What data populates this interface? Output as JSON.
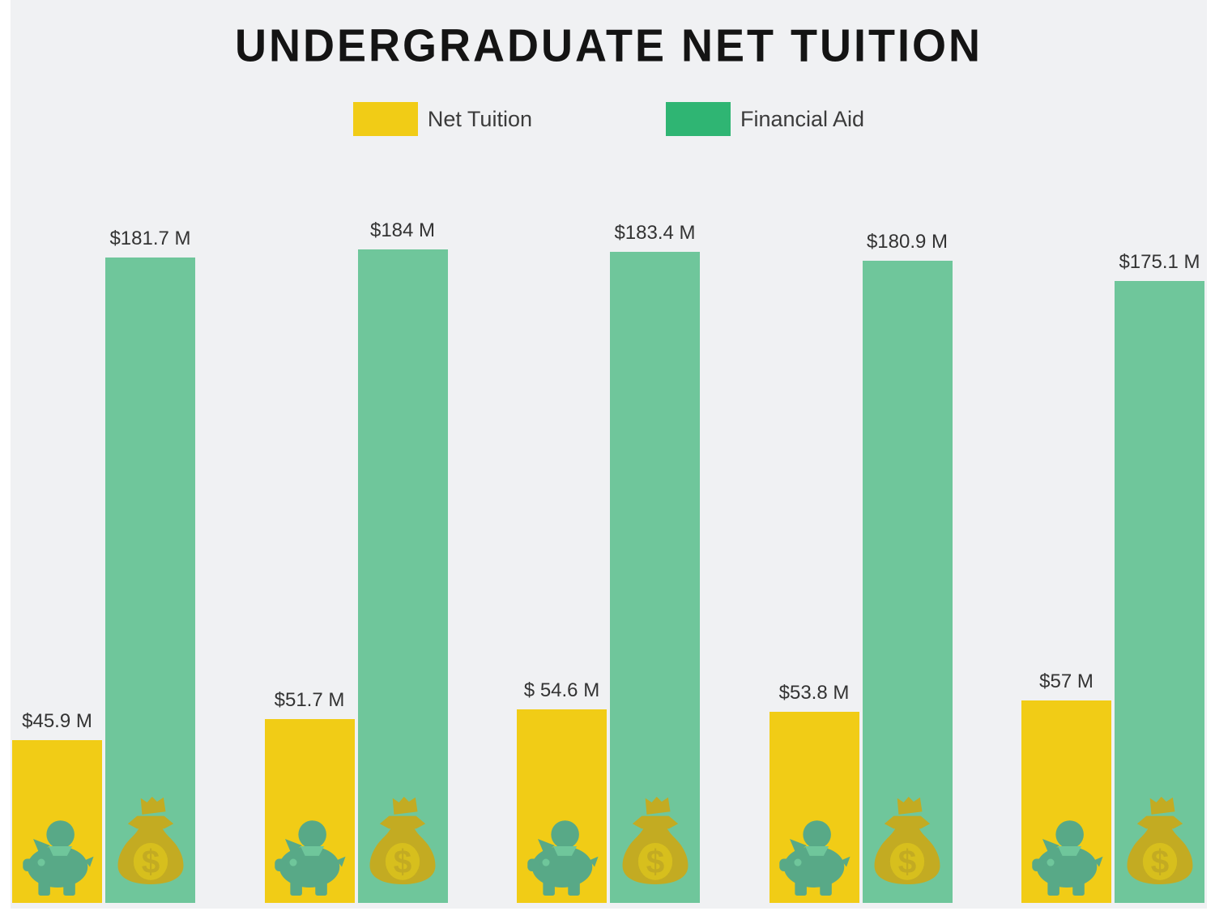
{
  "title": "UNDERGRADUATE NET TUITION",
  "colors": {
    "canvas_background": "#f0f1f3",
    "page_background": "#ffffff",
    "net_tuition_bar": "#f1cc16",
    "financial_aid_bar": "#6fc69b",
    "legend_financial_aid_swatch": "#2fb573",
    "piggy_icon_dark": "#58a987",
    "money_bag_dark": "#c3ab22",
    "money_bag_badge": "#d7bf1d",
    "title_text": "#141414",
    "label_text": "#333333"
  },
  "legend": [
    {
      "label": "Net Tuition",
      "color": "#f1cc16"
    },
    {
      "label": "Financial Aid",
      "color": "#2fb573"
    }
  ],
  "chart_data": {
    "type": "bar",
    "title": "UNDERGRADUATE NET TUITION",
    "grid": false,
    "axes_visible": false,
    "legend_position": "top",
    "series": [
      {
        "name": "Financial Aid",
        "color": "#6fc69b",
        "values": [
          45.9,
          51.7,
          54.6,
          53.8,
          57
        ]
      },
      {
        "name": "Net Tuition",
        "color": "#f1cc16",
        "values": [
          181.7,
          184,
          183.4,
          180.9,
          175.1
        ]
      }
    ],
    "groups": [
      {
        "financial_aid": {
          "value": 45.9,
          "label": "$45.9 M"
        },
        "net_tuition": {
          "value": 181.7,
          "label": "$181.7 M"
        }
      },
      {
        "financial_aid": {
          "value": 51.7,
          "label": "$51.7 M"
        },
        "net_tuition": {
          "value": 184,
          "label": "$184 M"
        }
      },
      {
        "financial_aid": {
          "value": 54.6,
          "label": "$ 54.6 M"
        },
        "net_tuition": {
          "value": 183.4,
          "label": "$183.4 M"
        }
      },
      {
        "financial_aid": {
          "value": 53.8,
          "label": "$53.8 M"
        },
        "net_tuition": {
          "value": 180.9,
          "label": "$180.9 M"
        }
      },
      {
        "financial_aid": {
          "value": 57,
          "label": "$57 M"
        },
        "net_tuition": {
          "value": 175.1,
          "label": "$175.1 M"
        }
      }
    ]
  }
}
